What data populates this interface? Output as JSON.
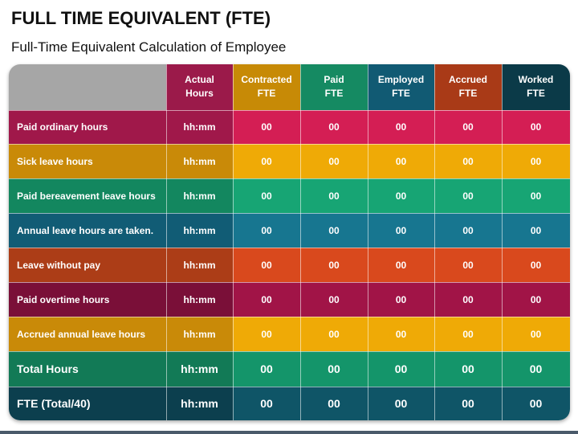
{
  "title": "FULL TIME EQUIVALENT (FTE)",
  "subtitle": "Full-Time Equivalent Calculation of Employee",
  "colors": {
    "corner": "#a6a6a6",
    "actual": "#9b1a4a",
    "contracted": "#c78a06",
    "paid": "#158a62",
    "employed": "#115a73",
    "accrued": "#a93a17",
    "worked": "#0b3a48"
  },
  "table": {
    "headers": [
      {
        "line1": "Actual",
        "line2": "Hours"
      },
      {
        "line1": "Contracted",
        "line2": "FTE"
      },
      {
        "line1": "Paid",
        "line2": "FTE"
      },
      {
        "line1": "Employed",
        "line2": "FTE"
      },
      {
        "line1": "Accrued",
        "line2": "FTE"
      },
      {
        "line1": "Worked",
        "line2": "FTE"
      }
    ],
    "rows": [
      {
        "label": "Paid ordinary hours",
        "values": [
          "hh:mm",
          "00",
          "00",
          "00",
          "00",
          "00"
        ],
        "color_dark": "#a0184a",
        "color_light": "#d41e54"
      },
      {
        "label": "Sick leave hours",
        "values": [
          "hh:mm",
          "00",
          "00",
          "00",
          "00",
          "00"
        ],
        "color_dark": "#c98a08",
        "color_light": "#efaa06"
      },
      {
        "label": "Paid bereavement leave hours",
        "values": [
          "hh:mm",
          "00",
          "00",
          "00",
          "00",
          "00"
        ],
        "color_dark": "#13875f",
        "color_light": "#17a574"
      },
      {
        "label": "Annual leave hours are taken.",
        "values": [
          "hh:mm",
          "00",
          "00",
          "00",
          "00",
          "00"
        ],
        "color_dark": "#115c75",
        "color_light": "#177690"
      },
      {
        "label": "Leave without pay",
        "values": [
          "hh:mm",
          "00",
          "00",
          "00",
          "00",
          "00"
        ],
        "color_dark": "#ac3d17",
        "color_light": "#d9491d"
      },
      {
        "label": "Paid overtime hours",
        "values": [
          "hh:mm",
          "00",
          "00",
          "00",
          "00",
          "00"
        ],
        "color_dark": "#7a0f38",
        "color_light": "#a11447"
      },
      {
        "label": "Accrued annual leave hours",
        "values": [
          "hh:mm",
          "00",
          "00",
          "00",
          "00",
          "00"
        ],
        "color_dark": "#c98a08",
        "color_light": "#efaa06"
      },
      {
        "label": "Total Hours",
        "values": [
          "hh:mm",
          "00",
          "00",
          "00",
          "00",
          "00"
        ],
        "color_dark": "#127a56",
        "color_light": "#14956a",
        "total": true
      },
      {
        "label": "FTE (Total/40)",
        "values": [
          "hh:mm",
          "00",
          "00",
          "00",
          "00",
          "00"
        ],
        "color_dark": "#0c3f4e",
        "color_light": "#0f5567",
        "total": true
      }
    ]
  }
}
